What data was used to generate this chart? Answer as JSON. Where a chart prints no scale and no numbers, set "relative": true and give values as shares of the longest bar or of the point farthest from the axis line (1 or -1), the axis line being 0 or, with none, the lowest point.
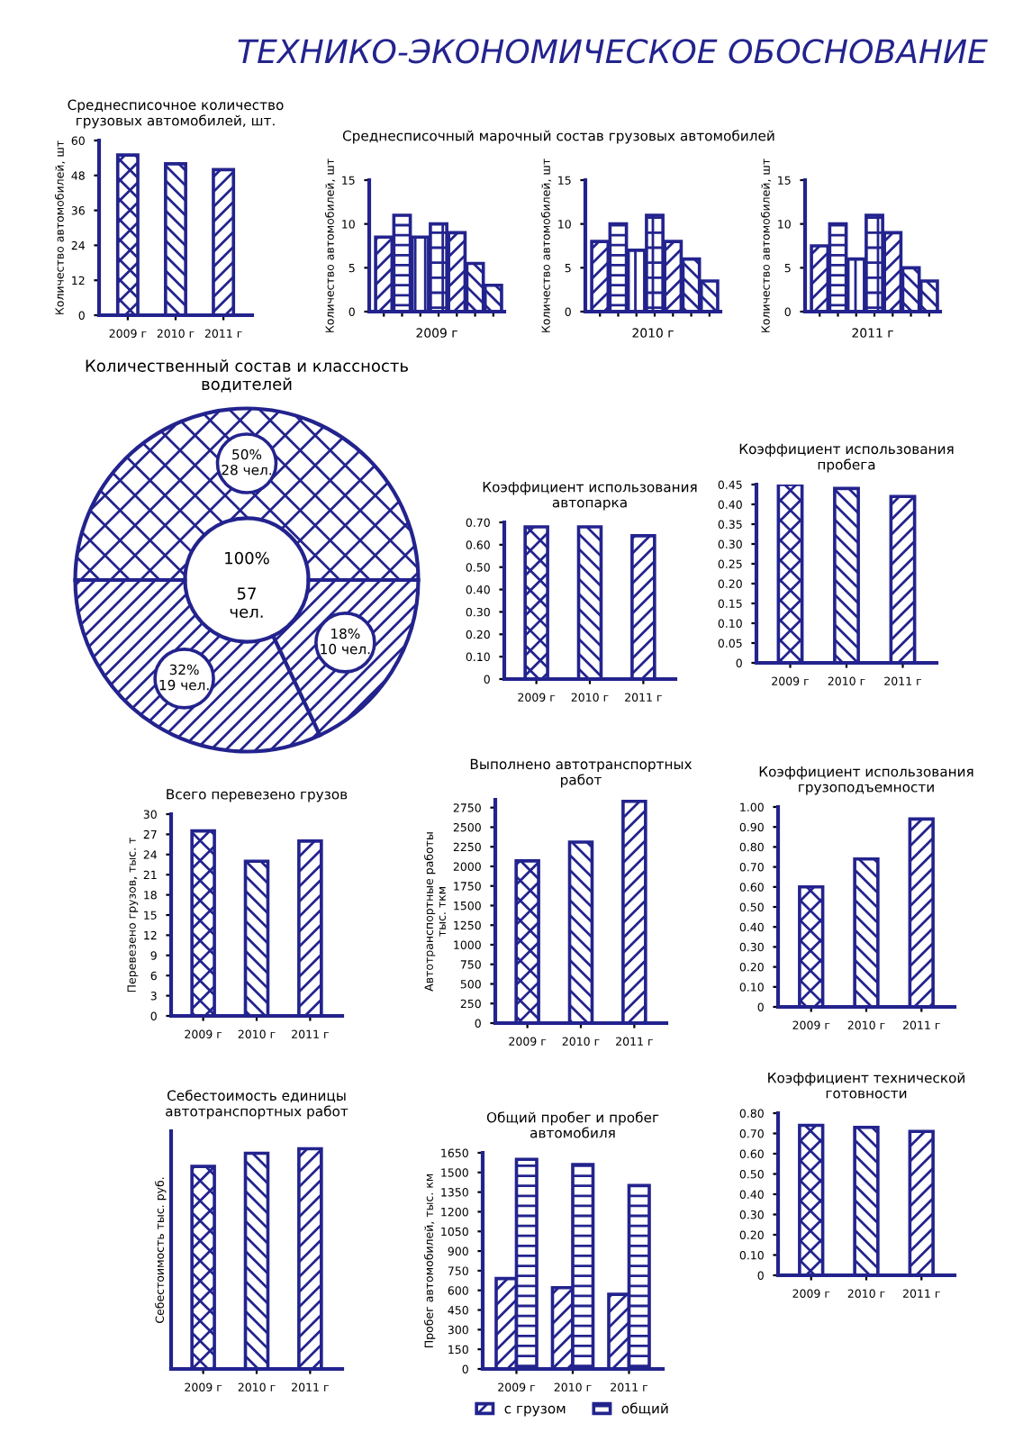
{
  "chart_data": [
    {
      "type": "other",
      "title": "ТЕХНИКО-ЭКОНОМИЧЕСКОЕ ОБОСНОВАНИЕ"
    },
    {
      "type": "bar",
      "title": "Среднесписочное количество\nгрузовых автомобилей, шт.",
      "ylabel": "Количество автомобилей, шт",
      "categories": [
        "2009 г",
        "2010 г",
        "2011 г"
      ],
      "values": [
        55,
        52,
        50
      ],
      "color": "#23238e",
      "ylim": [
        0,
        60
      ],
      "yticks": [
        0,
        12,
        24,
        36,
        48,
        60
      ]
    },
    {
      "type": "bar",
      "title": "Среднесписочный марочный состав грузовых автомобилей",
      "ylabel": "Количество автомобилей, шт",
      "xlabel": "2009 г",
      "categories": [
        null,
        null,
        null,
        null,
        null,
        null,
        null
      ],
      "values": [
        8.5,
        11,
        8.5,
        10,
        9,
        5.5,
        3
      ],
      "color": "#23238e",
      "ylim": [
        0,
        15
      ],
      "yticks": [
        0,
        5,
        10,
        15
      ]
    },
    {
      "type": "bar",
      "ylabel": "Количество автомобилей, шт",
      "xlabel": "2010 г",
      "categories": [
        null,
        null,
        null,
        null,
        null,
        null,
        null
      ],
      "values": [
        8,
        10,
        7,
        11,
        8,
        6,
        3.5
      ],
      "color": "#23238e",
      "ylim": [
        0,
        15
      ],
      "yticks": [
        0,
        5,
        10,
        15
      ]
    },
    {
      "type": "bar",
      "ylabel": "Количество автомобилей, шт",
      "xlabel": "2011 г",
      "categories": [
        null,
        null,
        null,
        null,
        null,
        null,
        null
      ],
      "values": [
        7.5,
        10,
        6,
        11,
        9,
        5,
        3.5
      ],
      "color": "#23238e",
      "ylim": [
        0,
        15
      ],
      "yticks": [
        0,
        5,
        10,
        15
      ]
    },
    {
      "type": "donut",
      "title": "Количественный состав и классность\nводителей",
      "categories": [
        null,
        null,
        null
      ],
      "values": [
        50,
        18,
        32
      ],
      "colors": [
        "#23238e",
        "#23238e",
        "#23238e"
      ],
      "value_labels": [
        "50%\n28 чел.",
        "18%\n10 чел.",
        "32%\n19 чел."
      ],
      "annotations": [
        "100%",
        "57\nчел."
      ]
    },
    {
      "type": "bar",
      "title": "Коэффициент использования\nавтопарка",
      "categories": [
        "2009 г",
        "2010 г",
        "2011 г"
      ],
      "values": [
        0.68,
        0.68,
        0.64
      ],
      "color": "#23238e",
      "ylim": [
        0,
        0.7
      ],
      "yticks": [
        0,
        {
          "value": 0.1,
          "label": "0.10"
        },
        {
          "value": 0.2,
          "label": "0.20"
        },
        {
          "value": 0.3,
          "label": "0.30"
        },
        {
          "value": 0.4,
          "label": "0.40"
        },
        {
          "value": 0.5,
          "label": "0.50"
        },
        {
          "value": 0.6,
          "label": "0.60"
        },
        {
          "value": 0.7,
          "label": "0.70"
        }
      ]
    },
    {
      "type": "bar",
      "title": "Коэффициент использования\nпробега",
      "categories": [
        "2009 г",
        "2010 г",
        "2011 г"
      ],
      "values": [
        0.45,
        0.44,
        0.42
      ],
      "color": "#23238e",
      "ylim": [
        0,
        0.45
      ],
      "yticks": [
        0,
        0.05,
        {
          "value": 0.1,
          "label": "0.10"
        },
        0.15,
        {
          "value": 0.2,
          "label": "0.20"
        },
        0.25,
        {
          "value": 0.3,
          "label": "0.30"
        },
        0.35,
        {
          "value": 0.4,
          "label": "0.40"
        },
        0.45
      ]
    },
    {
      "type": "bar",
      "title": "Всего перевезено грузов",
      "ylabel": "Перевезено грузов, тыс. т",
      "categories": [
        "2009 г",
        "2010 г",
        "2011 г"
      ],
      "values": [
        27.5,
        23,
        26
      ],
      "color": "#23238e",
      "ylim": [
        0,
        30
      ],
      "yticks": [
        0,
        3,
        6,
        9,
        12,
        15,
        18,
        21,
        24,
        27,
        30
      ]
    },
    {
      "type": "bar",
      "title": "Выполнено автотранспортных\nработ",
      "ylabel": "Автотранспортные работы\nтыс. ткм",
      "categories": [
        "2009 г",
        "2010 г",
        "2011 г"
      ],
      "values": [
        2070,
        2310,
        2830
      ],
      "color": "#23238e",
      "ylim": [
        0,
        2850
      ],
      "yticks": [
        0,
        250,
        500,
        750,
        1000,
        1250,
        1500,
        1750,
        2000,
        2250,
        2500,
        2750
      ]
    },
    {
      "type": "bar",
      "title": "Коэффициент использования\nгрузоподъемности",
      "categories": [
        "2009 г",
        "2010 г",
        "2011 г"
      ],
      "values": [
        0.6,
        0.74,
        0.94
      ],
      "color": "#23238e",
      "ylim": [
        0,
        1
      ],
      "yticks": [
        0,
        {
          "value": 0.1,
          "label": "0.10"
        },
        {
          "value": 0.2,
          "label": "0.20"
        },
        {
          "value": 0.3,
          "label": "0.30"
        },
        {
          "value": 0.4,
          "label": "0.40"
        },
        {
          "value": 0.5,
          "label": "0.50"
        },
        {
          "value": 0.6,
          "label": "0.60"
        },
        {
          "value": 0.7,
          "label": "0.70"
        },
        {
          "value": 0.8,
          "label": "0.80"
        },
        {
          "value": 0.9,
          "label": "0.90"
        },
        {
          "value": 1,
          "label": "1.00"
        }
      ]
    },
    {
      "type": "bar",
      "title": "Себестоимость единицы\nавтотранспортных работ",
      "ylabel": "Себестоимость тыс. руб.",
      "categories": [
        "2009 г",
        "2010 г",
        "2011 г"
      ],
      "values": [
        0.92,
        0.98,
        1
      ],
      "color": "#23238e",
      "relative": true
    },
    {
      "type": "bar",
      "title": "Общий пробег и пробег\nавтомобиля",
      "ylabel": "Пробег автомобилей, тыс. км",
      "categories": [
        "2009 г",
        "2010 г",
        "2011 г"
      ],
      "ylim": [
        0,
        1650
      ],
      "yticks": [
        0,
        150,
        300,
        450,
        600,
        750,
        900,
        1050,
        1200,
        1350,
        1500,
        1650
      ],
      "legend": "bottom",
      "series": [
        {
          "name": "с грузом",
          "color": "#23238e",
          "values": [
            690,
            620,
            570
          ]
        },
        {
          "name": "общий",
          "color": "#23238e",
          "values": [
            1600,
            1560,
            1400
          ]
        }
      ]
    },
    {
      "type": "bar",
      "title": "Коэффициент технической\nготовности",
      "categories": [
        "2009 г",
        "2010 г",
        "2011 г"
      ],
      "values": [
        0.74,
        0.73,
        0.71
      ],
      "color": "#23238e",
      "ylim": [
        0,
        0.8
      ],
      "yticks": [
        0,
        {
          "value": 0.1,
          "label": "0.10"
        },
        {
          "value": 0.2,
          "label": "0.20"
        },
        {
          "value": 0.3,
          "label": "0.30"
        },
        {
          "value": 0.4,
          "label": "0.40"
        },
        {
          "value": 0.5,
          "label": "0.50"
        },
        {
          "value": 0.6,
          "label": "0.60"
        },
        {
          "value": 0.7,
          "label": "0.70"
        },
        {
          "value": 0.8,
          "label": "0.80"
        }
      ]
    }
  ]
}
